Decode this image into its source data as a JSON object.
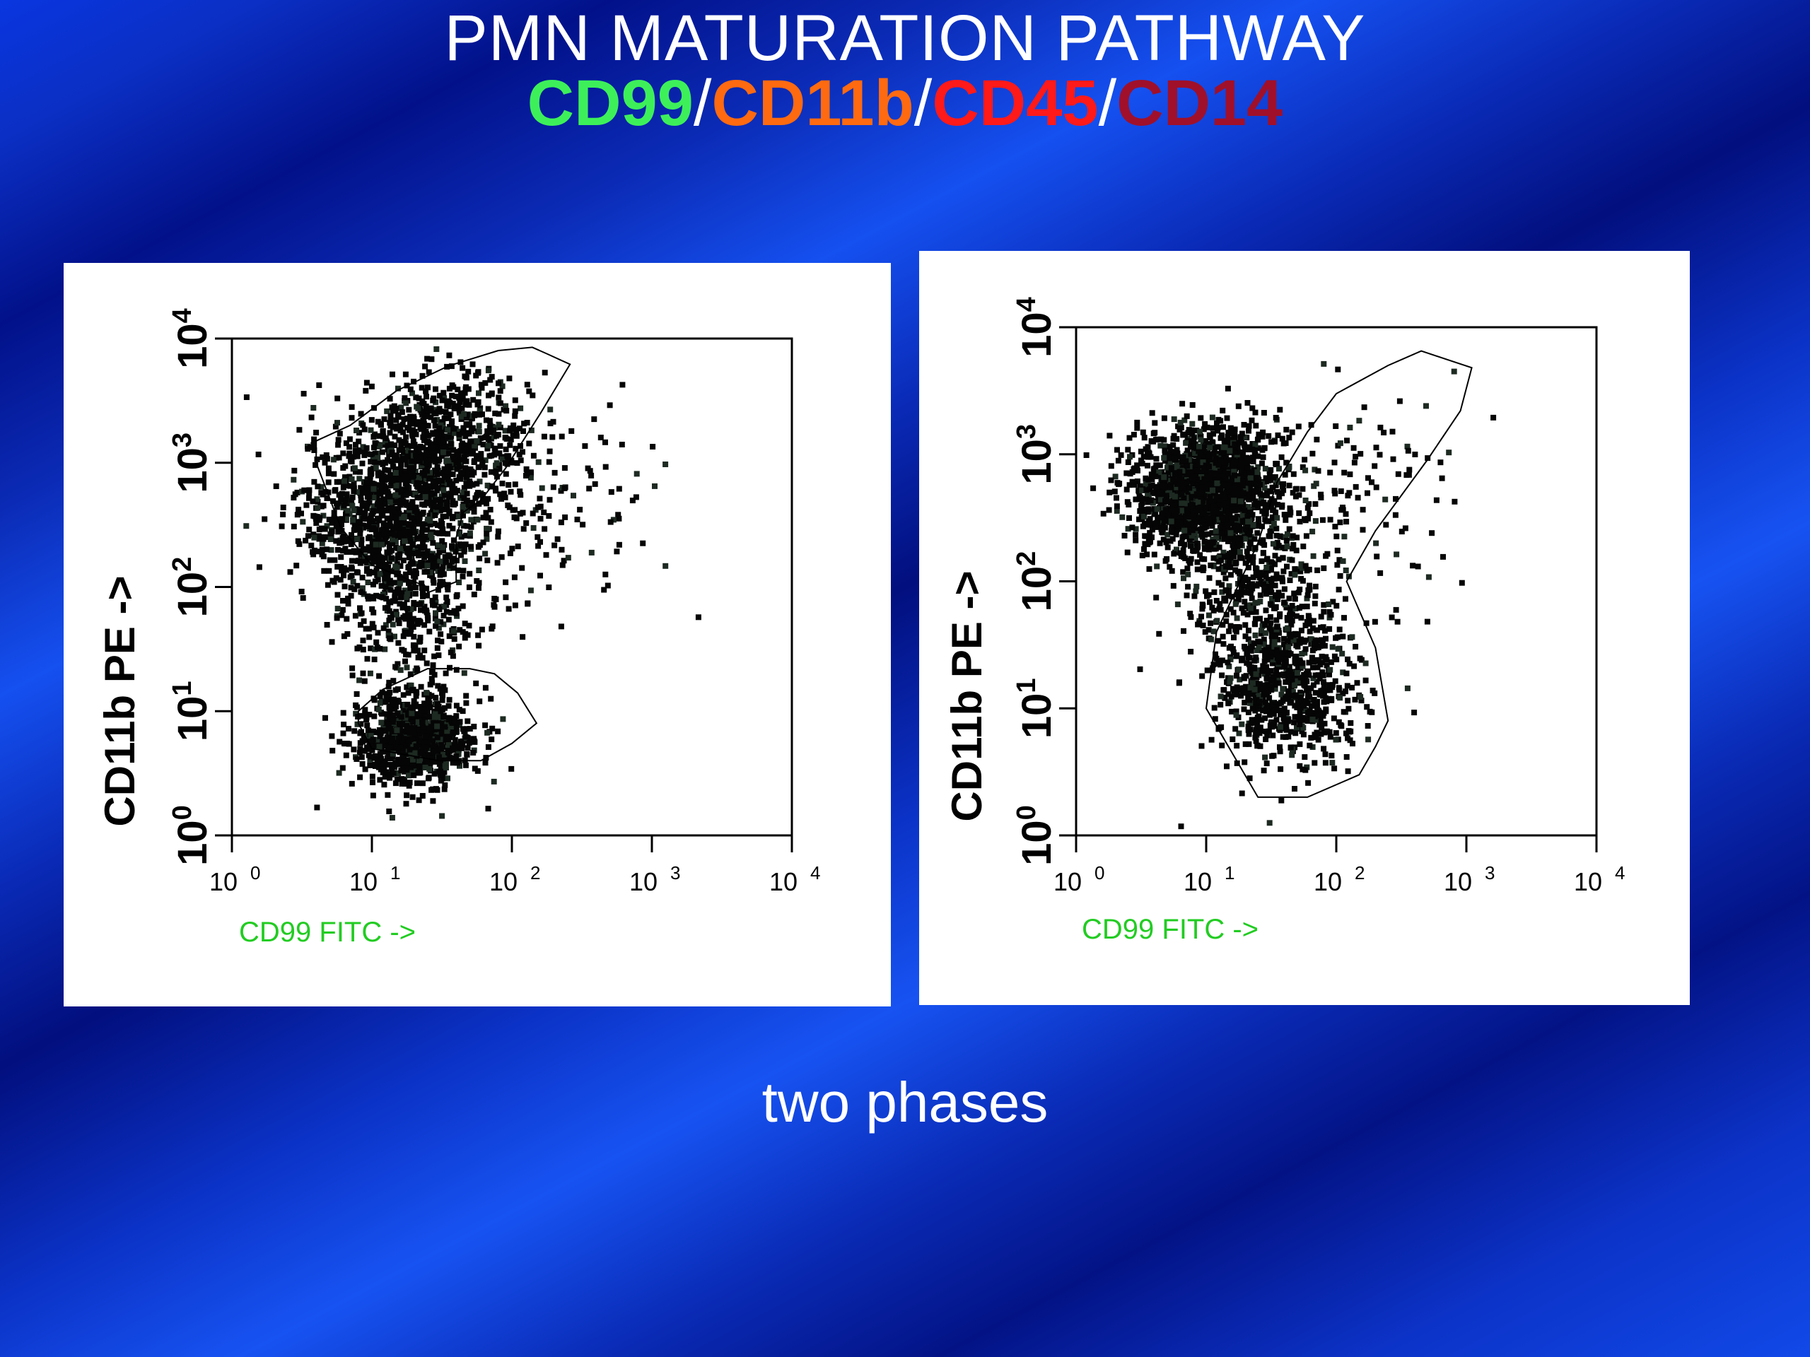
{
  "slide": {
    "title": "PMN MATURATION PATHWAY",
    "subtitle_parts": [
      {
        "text": "CD99",
        "color": "#3df05a"
      },
      {
        "text": "/",
        "color": "#ffffff"
      },
      {
        "text": "CD11b",
        "color": "#ff6a10"
      },
      {
        "text": "/",
        "color": "#ffffff"
      },
      {
        "text": "CD45",
        "color": "#ff1a1a"
      },
      {
        "text": "/",
        "color": "#ffffff"
      },
      {
        "text": "CD14",
        "color": "#a0102a"
      }
    ],
    "footer": "two phases"
  },
  "chart_data": [
    {
      "type": "scatter",
      "xlabel": "CD99 FITC ->",
      "ylabel": "CD11b PE ->",
      "x_scale": "log",
      "y_scale": "log",
      "xlim": [
        1,
        10000
      ],
      "ylim": [
        1,
        10000
      ],
      "x_tick_labels": [
        {
          "base": "10",
          "exp": "0"
        },
        {
          "base": "10",
          "exp": "1"
        },
        {
          "base": "10",
          "exp": "2"
        },
        {
          "base": "10",
          "exp": "3"
        },
        {
          "base": "10",
          "exp": "4"
        }
      ],
      "y_tick_labels": [
        {
          "base": "10",
          "exp": "0"
        },
        {
          "base": "10",
          "exp": "1"
        },
        {
          "base": "10",
          "exp": "2"
        },
        {
          "base": "10",
          "exp": "3"
        },
        {
          "base": "10",
          "exp": "4"
        }
      ],
      "grid": false,
      "populations": [
        {
          "center": [
            14,
            400
          ],
          "spread": [
            0.33,
            0.35
          ],
          "count": 1100
        },
        {
          "center": [
            35,
            1500
          ],
          "spread": [
            0.28,
            0.28
          ],
          "count": 600
        },
        {
          "center": [
            18,
            70
          ],
          "spread": [
            0.25,
            0.35
          ],
          "count": 350
        },
        {
          "center": [
            20,
            6
          ],
          "spread": [
            0.22,
            0.18
          ],
          "count": 900
        },
        {
          "center": [
            120,
            600
          ],
          "spread": [
            0.45,
            0.45
          ],
          "count": 180
        }
      ],
      "gates": [
        [
          [
            4,
            1500
          ],
          [
            7,
            2000
          ],
          [
            15,
            3800
          ],
          [
            35,
            6000
          ],
          [
            80,
            8000
          ],
          [
            140,
            8500
          ],
          [
            180,
            7500
          ],
          [
            260,
            6200
          ],
          [
            160,
            2500
          ],
          [
            90,
            900
          ],
          [
            60,
            500
          ],
          [
            45,
            400
          ],
          [
            40,
            250
          ],
          [
            40,
            110
          ],
          [
            25,
            90
          ],
          [
            25,
            100
          ],
          [
            10,
            150
          ],
          [
            6,
            300
          ],
          [
            4,
            1000
          ]
        ],
        [
          [
            8,
            8
          ],
          [
            10,
            5
          ],
          [
            30,
            4
          ],
          [
            60,
            4
          ],
          [
            100,
            5.5
          ],
          [
            150,
            8
          ],
          [
            110,
            14
          ],
          [
            75,
            20
          ],
          [
            50,
            22
          ],
          [
            25,
            22
          ],
          [
            12,
            15
          ],
          [
            8,
            10
          ]
        ]
      ]
    },
    {
      "type": "scatter",
      "xlabel": "CD99 FITC ->",
      "ylabel": "CD11b PE ->",
      "x_scale": "log",
      "y_scale": "log",
      "xlim": [
        1,
        10000
      ],
      "ylim": [
        1,
        10000
      ],
      "x_tick_labels": [
        {
          "base": "10",
          "exp": "0"
        },
        {
          "base": "10",
          "exp": "1"
        },
        {
          "base": "10",
          "exp": "2"
        },
        {
          "base": "10",
          "exp": "3"
        },
        {
          "base": "10",
          "exp": "4"
        }
      ],
      "y_tick_labels": [
        {
          "base": "10",
          "exp": "0"
        },
        {
          "base": "10",
          "exp": "1"
        },
        {
          "base": "10",
          "exp": "2"
        },
        {
          "base": "10",
          "exp": "3"
        },
        {
          "base": "10",
          "exp": "4"
        }
      ],
      "grid": false,
      "populations": [
        {
          "center": [
            10,
            500
          ],
          "spread": [
            0.28,
            0.25
          ],
          "count": 1900
        },
        {
          "center": [
            25,
            100
          ],
          "spread": [
            0.3,
            0.3
          ],
          "count": 350
        },
        {
          "center": [
            40,
            15
          ],
          "spread": [
            0.28,
            0.3
          ],
          "count": 800
        },
        {
          "center": [
            120,
            500
          ],
          "spread": [
            0.4,
            0.4
          ],
          "count": 120
        }
      ],
      "gates": [
        [
          [
            35,
            600
          ],
          [
            60,
            1500
          ],
          [
            100,
            3000
          ],
          [
            250,
            5000
          ],
          [
            450,
            6500
          ],
          [
            1100,
            4800
          ],
          [
            900,
            2200
          ],
          [
            500,
            900
          ],
          [
            200,
            250
          ],
          [
            120,
            100
          ],
          [
            200,
            30
          ],
          [
            250,
            8
          ],
          [
            200,
            5
          ],
          [
            150,
            3
          ],
          [
            60,
            2
          ],
          [
            25,
            2
          ],
          [
            10,
            10
          ],
          [
            12,
            40
          ],
          [
            25,
            200
          ],
          [
            35,
            600
          ]
        ]
      ]
    }
  ]
}
